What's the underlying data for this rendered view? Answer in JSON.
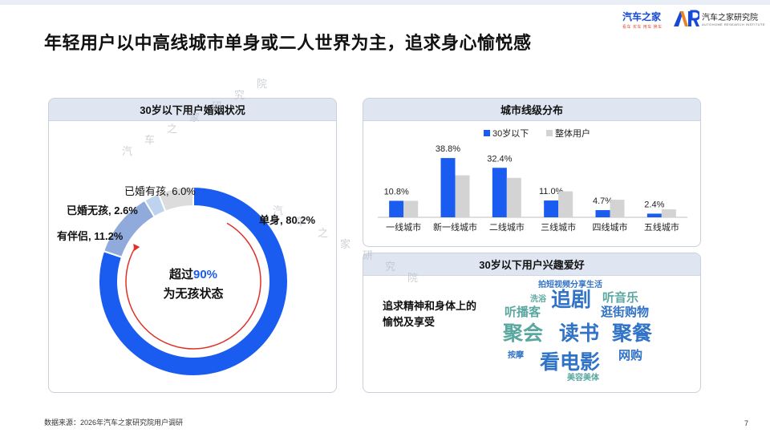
{
  "title": "年轻用户以中高线城市单身或二人世界为主，追求身心愉悦感",
  "brand": {
    "logo_a_main": "汽车之家",
    "logo_a_sub": "看车 买车 用车 换车",
    "logo_b_main": "汽车之家研究院",
    "logo_b_sub": "AUTOHOME RESEARCH INSTITUTE",
    "accent": "#1749d8"
  },
  "footer": {
    "source": "数据来源：2026年汽车之家研究院用户调研",
    "page_number": "7"
  },
  "watermark": "汽车之家研究院",
  "colors": {
    "primary_blue": "#1b5cf0",
    "light_gray": "#d3d3d3",
    "mid_blue": "#8faadb",
    "pale_blue": "#bed3ee",
    "ring_gray": "#dcdcdc",
    "arrow_red": "#e0302a",
    "wordcloud_blue": "#3173c6",
    "wordcloud_green": "#5aa7a0"
  },
  "marital_panel": {
    "header": "30岁以下用户婚姻状况",
    "center_line1_prefix": "超过",
    "center_line1_highlight": "90%",
    "center_line2": "为无孩状态"
  },
  "city_panel": {
    "header": "城市线级分布"
  },
  "hobby_panel": {
    "header": "30岁以下用户兴趣爱好",
    "desc_line1": "追求精神和身体上的",
    "desc_line2": "愉悦及享受",
    "words": [
      {
        "text": "拍短视频分享生活",
        "size": "small",
        "color": "blue"
      },
      {
        "text": "洗浴",
        "size": "small",
        "color": "green"
      },
      {
        "text": "追剧",
        "size": "xlarge",
        "color": "blue"
      },
      {
        "text": "听音乐",
        "size": "medium",
        "color": "green"
      },
      {
        "text": "听播客",
        "size": "medium",
        "color": "green"
      },
      {
        "text": "逛街购物",
        "size": "medium",
        "color": "blue"
      },
      {
        "text": "聚会",
        "size": "xlarge",
        "color": "green"
      },
      {
        "text": "读书",
        "size": "xlarge",
        "color": "blue"
      },
      {
        "text": "聚餐",
        "size": "xlarge",
        "color": "blue"
      },
      {
        "text": "按摩",
        "size": "small",
        "color": "blue"
      },
      {
        "text": "看电影",
        "size": "xlarge",
        "color": "blue"
      },
      {
        "text": "网购",
        "size": "medium",
        "color": "blue"
      },
      {
        "text": "美容美体",
        "size": "small",
        "color": "green"
      }
    ]
  },
  "chart_data": [
    {
      "type": "pie",
      "title": "30岁以下用户婚姻状况",
      "donut": true,
      "slices": [
        {
          "label": "单身",
          "value": 80.2,
          "display": "单身, 80.2%",
          "color": "#1b5cf0"
        },
        {
          "label": "有伴侣",
          "value": 11.2,
          "display": "有伴侣, 11.2%",
          "color": "#8faadb"
        },
        {
          "label": "已婚无孩",
          "value": 2.6,
          "display": "已婚无孩, 2.6%",
          "color": "#bed3ee"
        },
        {
          "label": "已婚有孩",
          "value": 6.0,
          "display": "已婚有孩, 6.0%",
          "color": "#dcdcdc"
        }
      ]
    },
    {
      "type": "bar",
      "title": "城市线级分布",
      "categories": [
        "一线城市",
        "新一线城市",
        "二线城市",
        "三线城市",
        "四线城市",
        "五线城市"
      ],
      "series": [
        {
          "name": "30岁以下",
          "values": [
            10.8,
            38.8,
            32.4,
            11.0,
            4.7,
            2.4
          ],
          "labels": [
            "10.8%",
            "38.8%",
            "32.4%",
            "11.0%",
            "4.7%",
            "2.4%"
          ],
          "color": "#1b5cf0"
        },
        {
          "name": "整体用户",
          "values": [
            10.8,
            27.5,
            25.8,
            17.0,
            11.5,
            5.2
          ],
          "color": "#d3d3d3"
        }
      ],
      "ylim": [
        0,
        42
      ],
      "legend": "top"
    }
  ]
}
